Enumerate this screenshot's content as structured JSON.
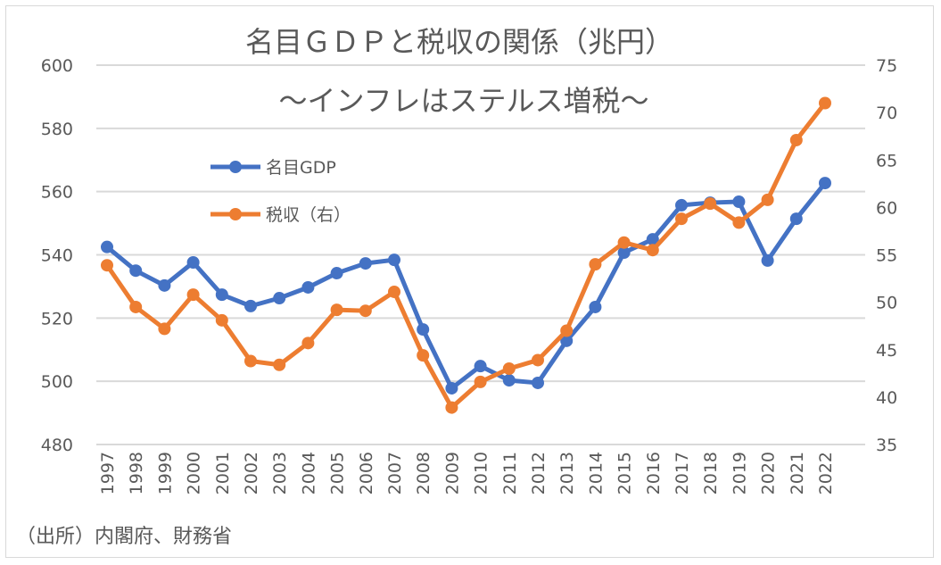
{
  "chart_data": {
    "type": "line",
    "title": "名目ＧＤＰと税収の関係（兆円）",
    "subtitle": "～インフレはステルス増税～",
    "source": "（出所）内閣府、財務省",
    "x": [
      "1997",
      "1998",
      "1999",
      "2000",
      "2001",
      "2002",
      "2003",
      "2004",
      "2005",
      "2006",
      "2007",
      "2008",
      "2009",
      "2010",
      "2011",
      "2012",
      "2013",
      "2014",
      "2015",
      "2016",
      "2017",
      "2018",
      "2019",
      "2020",
      "2021",
      "2022"
    ],
    "y_left": {
      "range": [
        480,
        600
      ],
      "ticks": [
        "480",
        "500",
        "520",
        "540",
        "560",
        "580",
        "600"
      ]
    },
    "y_right": {
      "range": [
        35,
        75
      ],
      "ticks": [
        "35",
        "40",
        "45",
        "50",
        "55",
        "60",
        "65",
        "70",
        "75"
      ]
    },
    "grid": true,
    "legend_placement": "top-left",
    "series": [
      {
        "name": "名目GDP",
        "axis": "left",
        "color": "#4472c4",
        "values": [
          542.5,
          535.0,
          530.3,
          537.6,
          527.4,
          523.8,
          526.3,
          529.7,
          534.2,
          537.3,
          538.4,
          516.4,
          497.8,
          504.8,
          500.3,
          499.5,
          512.8,
          523.5,
          540.7,
          544.9,
          555.7,
          556.5,
          556.8,
          538.2,
          551.4,
          562.7
        ]
      },
      {
        "name": "税収（右）",
        "axis": "right",
        "color": "#ed7d31",
        "values": [
          53.9,
          49.5,
          47.2,
          50.8,
          48.1,
          43.8,
          43.4,
          45.7,
          49.2,
          49.1,
          51.1,
          44.4,
          38.9,
          41.6,
          43.0,
          43.9,
          47.0,
          54.0,
          56.3,
          55.5,
          58.8,
          60.4,
          58.4,
          60.8,
          67.1,
          71.0
        ]
      }
    ]
  }
}
